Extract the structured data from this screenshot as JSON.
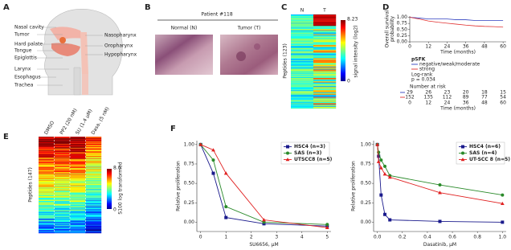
{
  "panel_labels": [
    "A",
    "B",
    "C",
    "D",
    "E",
    "F"
  ],
  "panels": {
    "A": {
      "labels_left": [
        "Nasal cavity",
        "Tumor",
        "Hard palate",
        "Tongue",
        "Epiglottis",
        "Larynx",
        "Esophagus",
        "Trachea"
      ],
      "labels_right": [
        "Nasopharynx",
        "Oropharynx",
        "Hypopharynx"
      ]
    },
    "B": {
      "title": "Patient #118",
      "images": [
        "Normal (N)",
        "Tumor (T)"
      ]
    },
    "C": {
      "columns": [
        "N",
        "T"
      ],
      "ylabel": "Peptides (123)",
      "colorbar_label": "signal intensity (log2)",
      "colorbar_ticks": [
        "8.23",
        "0"
      ]
    },
    "E": {
      "columns": [
        "DMSO",
        "PP2 (20 nM)",
        "SU (1.4 µM)",
        "Dasa. (5 nM)"
      ],
      "ylabel": "Peptides (147)",
      "colorbar_label": "S100 log transformed",
      "colorbar_ticks": [
        "8.0",
        "0"
      ]
    }
  },
  "chart_data": [
    {
      "type": "line",
      "xlabel": "Time (months)",
      "ylabel": [
        "Overall survival",
        "probability"
      ],
      "x": [
        0,
        6,
        12,
        18,
        24,
        30,
        36,
        42,
        48,
        54,
        60
      ],
      "xlim": [
        0,
        62
      ],
      "xticks": [
        0,
        12,
        24,
        36,
        48,
        60
      ],
      "ylim": [
        0,
        1.05
      ],
      "yticks": [
        {
          "value": 0,
          "label": "0.00"
        },
        {
          "value": 0.25,
          "label": "0.25"
        },
        {
          "value": 0.5,
          "label": "0.50"
        },
        {
          "value": 0.75,
          "label": "0.75"
        },
        {
          "value": 1,
          "label": "1.00"
        }
      ],
      "legend": "below",
      "legend_title": "pSFK",
      "series": [
        {
          "name": "negative/weak/moderate",
          "color": "#3040c0",
          "values": [
            1,
            0.97,
            0.93,
            0.93,
            0.93,
            0.9,
            0.9,
            0.87,
            0.87,
            0.87,
            0.87
          ]
        },
        {
          "name": "strong",
          "color": "#e03030",
          "values": [
            1,
            0.93,
            0.85,
            0.8,
            0.76,
            0.72,
            0.68,
            0.65,
            0.63,
            0.62,
            0.6
          ]
        }
      ],
      "annotations": [
        "Log-rank",
        "p = 0.034"
      ],
      "risk_table": {
        "title": "Number at risk",
        "rows": [
          [
            29,
            26,
            23,
            20,
            18,
            15
          ],
          [
            152,
            135,
            112,
            89,
            77,
            54
          ]
        ],
        "xticks": [
          0,
          12,
          24,
          36,
          48,
          60
        ],
        "xlabel": "Time (months)"
      }
    },
    {
      "type": "line",
      "xlabel": "SU6656, µM",
      "ylabel": [
        "Relative proliferation"
      ],
      "x": [
        0,
        0.5,
        1,
        2.5,
        5
      ],
      "xlim": [
        -0.15,
        5.15
      ],
      "xticks": [
        0,
        1,
        2,
        3,
        4,
        5
      ],
      "ylim": [
        -0.12,
        1.05
      ],
      "yticks": [
        {
          "value": 0,
          "label": "0.00"
        },
        {
          "value": 0.25,
          "label": "0.25"
        },
        {
          "value": 0.5,
          "label": "0.50"
        },
        {
          "value": 0.75,
          "label": "0.75"
        },
        {
          "value": 1,
          "label": "1.00"
        }
      ],
      "legend": "upper right",
      "series": [
        {
          "name": "HSC4 (n=3)",
          "color": "#1a1a8c",
          "marker": "square",
          "values": [
            1,
            0.63,
            0.06,
            -0.02,
            -0.05
          ]
        },
        {
          "name": "SAS (n=3)",
          "color": "#2a8a2a",
          "marker": "circle",
          "values": [
            1,
            0.8,
            0.2,
            0.0,
            -0.03
          ]
        },
        {
          "name": "UTSCC8 (n=5)",
          "color": "#e02020",
          "marker": "triangle",
          "values": [
            1,
            0.93,
            0.63,
            0.03,
            -0.07
          ]
        }
      ]
    },
    {
      "type": "line",
      "xlabel": "Dasatinib, µM",
      "ylabel": [
        "Relative proliferation"
      ],
      "x": [
        0,
        0.01,
        0.03,
        0.06,
        0.1,
        0.5,
        1
      ],
      "xlim": [
        -0.03,
        1.03
      ],
      "xticks": [
        {
          "value": 0,
          "label": "0.0"
        },
        {
          "value": 0.2,
          "label": "0.2"
        },
        {
          "value": 0.4,
          "label": "0.4"
        },
        {
          "value": 0.6,
          "label": "0.6"
        },
        {
          "value": 0.8,
          "label": "0.8"
        },
        {
          "value": 1,
          "label": "1.0"
        }
      ],
      "ylim": [
        -0.12,
        1.05
      ],
      "yticks": [
        {
          "value": 0,
          "label": "0.00"
        },
        {
          "value": 0.25,
          "label": "0.25"
        },
        {
          "value": 0.5,
          "label": "0.50"
        },
        {
          "value": 0.75,
          "label": "0.75"
        },
        {
          "value": 1,
          "label": "1.00"
        }
      ],
      "legend": "upper right",
      "series": [
        {
          "name": "HSC4 (n=6)",
          "color": "#1a1a8c",
          "marker": "square",
          "values": [
            1,
            0.85,
            0.35,
            0.1,
            0.03,
            0.01,
            0
          ]
        },
        {
          "name": "SAS (n=4)",
          "color": "#2a8a2a",
          "marker": "circle",
          "values": [
            1,
            0.9,
            0.8,
            0.72,
            0.6,
            0.48,
            0.35
          ]
        },
        {
          "name": "UT-SCC 8 (n=5)",
          "color": "#e02020",
          "marker": "triangle",
          "values": [
            1,
            0.78,
            0.7,
            0.62,
            0.58,
            0.38,
            0.24
          ]
        }
      ]
    }
  ]
}
